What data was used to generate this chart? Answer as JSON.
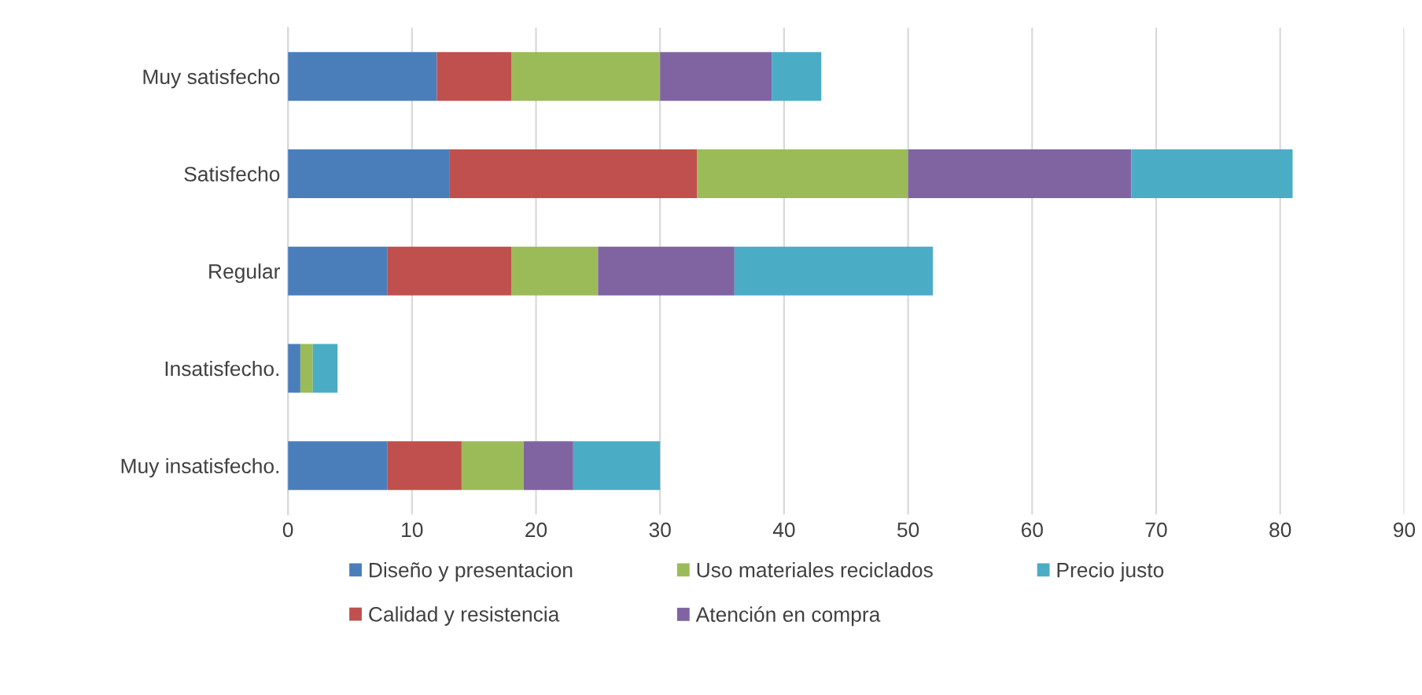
{
  "chart_data": {
    "type": "bar",
    "orientation": "horizontal",
    "stacked": true,
    "categories": [
      "Muy satisfecho",
      "Satisfecho",
      "Regular",
      "Insatisfecho.",
      "Muy insatisfecho."
    ],
    "series": [
      {
        "name": "Diseño y presentacion",
        "color": "#4a7ebb",
        "values": [
          12,
          13,
          8,
          1,
          8
        ]
      },
      {
        "name": "Calidad y resistencia",
        "color": "#c0504d",
        "values": [
          6,
          20,
          10,
          0,
          6
        ]
      },
      {
        "name": "Uso materiales reciclados",
        "color": "#9bbb59",
        "values": [
          12,
          17,
          7,
          1,
          5
        ]
      },
      {
        "name": "Atención en compra",
        "color": "#8064a2",
        "values": [
          9,
          18,
          11,
          0,
          4
        ]
      },
      {
        "name": "Precio justo",
        "color": "#4bacc6",
        "values": [
          4,
          13,
          16,
          2,
          7
        ]
      }
    ],
    "xlim": [
      0,
      90
    ],
    "xticks": [
      0,
      10,
      20,
      30,
      40,
      50,
      60,
      70,
      80,
      90
    ],
    "grid": "x",
    "legend": "bottom"
  }
}
